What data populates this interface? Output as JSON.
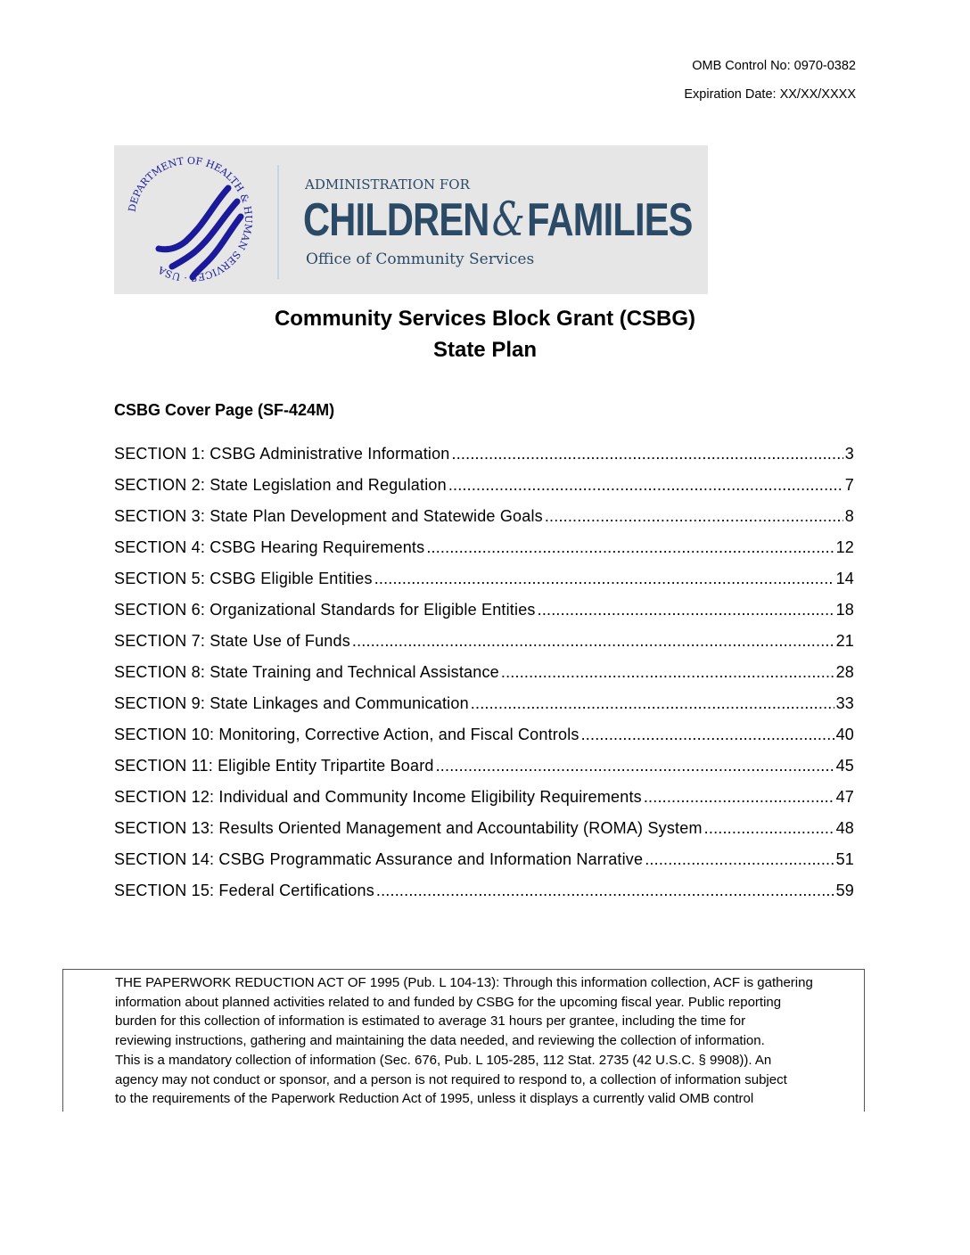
{
  "header": {
    "omb_control": "OMB Control No: 0970-0382",
    "expiration": "Expiration Date: XX/XX/XXXX"
  },
  "logo": {
    "seal_text": "DEPARTMENT OF HEALTH & HUMAN SERVICES · USA",
    "administration_for": "ADMINISTRATION FOR",
    "children": "CHILDREN",
    "ampersand": "&",
    "families": "FAMILIES",
    "office": "Office of Community Services",
    "colors": {
      "brand": "#2b4a66",
      "seal": "#1a1a9a",
      "banner_bg": "#e6e6e6"
    }
  },
  "title": {
    "line1": "Community Services Block Grant (CSBG)",
    "line2": "State Plan"
  },
  "cover_page": "CSBG Cover Page (SF-424M)",
  "toc": [
    {
      "label": "SECTION 1: CSBG Administrative Information",
      "page": "3"
    },
    {
      "label": "SECTION 2: State Legislation and Regulation",
      "page": "7"
    },
    {
      "label": "SECTION 3: State Plan Development and Statewide Goals",
      "page": "8"
    },
    {
      "label": "SECTION 4: CSBG Hearing Requirements",
      "page": "12"
    },
    {
      "label": "SECTION 5: CSBG Eligible Entities",
      "page": "14"
    },
    {
      "label": "SECTION 6: Organizational Standards for Eligible Entities",
      "page": "18"
    },
    {
      "label": "SECTION 7: State Use of Funds",
      "page": "21"
    },
    {
      "label": "SECTION 8: State Training and Technical Assistance",
      "page": "28"
    },
    {
      "label": "SECTION 9: State Linkages and Communication",
      "page": "33"
    },
    {
      "label": "SECTION 10: Monitoring, Corrective Action, and Fiscal Controls",
      "page": "40"
    },
    {
      "label": "SECTION 11: Eligible Entity Tripartite Board",
      "page": "45"
    },
    {
      "label": "SECTION 12: Individual and Community Income Eligibility Requirements",
      "page": "47"
    },
    {
      "label": "SECTION 13: Results Oriented Management and Accountability (ROMA) System",
      "page": "48"
    },
    {
      "label": "SECTION 14: CSBG Programmatic Assurance and Information Narrative",
      "page": "51"
    },
    {
      "label": "SECTION 15: Federal Certifications",
      "page": "59"
    }
  ],
  "paperwork_notice": [
    "THE PAPERWORK REDUCTION ACT OF 1995 (Pub. L 104-13): Through this information collection, ACF is gathering",
    "information about planned activities related to and funded by CSBG for the upcoming fiscal year. Public reporting",
    "burden for this collection of information is estimated to average 31 hours per grantee, including the time for",
    "reviewing instructions, gathering and maintaining the data needed, and reviewing the collection of information.",
    "This is a mandatory collection of information (Sec. 676, Pub. L 105-285, 112 Stat. 2735 (42 U.S.C. § 9908)). An",
    "agency may not conduct or sponsor, and a person is not required to respond to, a collection of information subject",
    "to the requirements of the Paperwork Reduction Act of 1995, unless it displays a currently valid OMB control"
  ]
}
